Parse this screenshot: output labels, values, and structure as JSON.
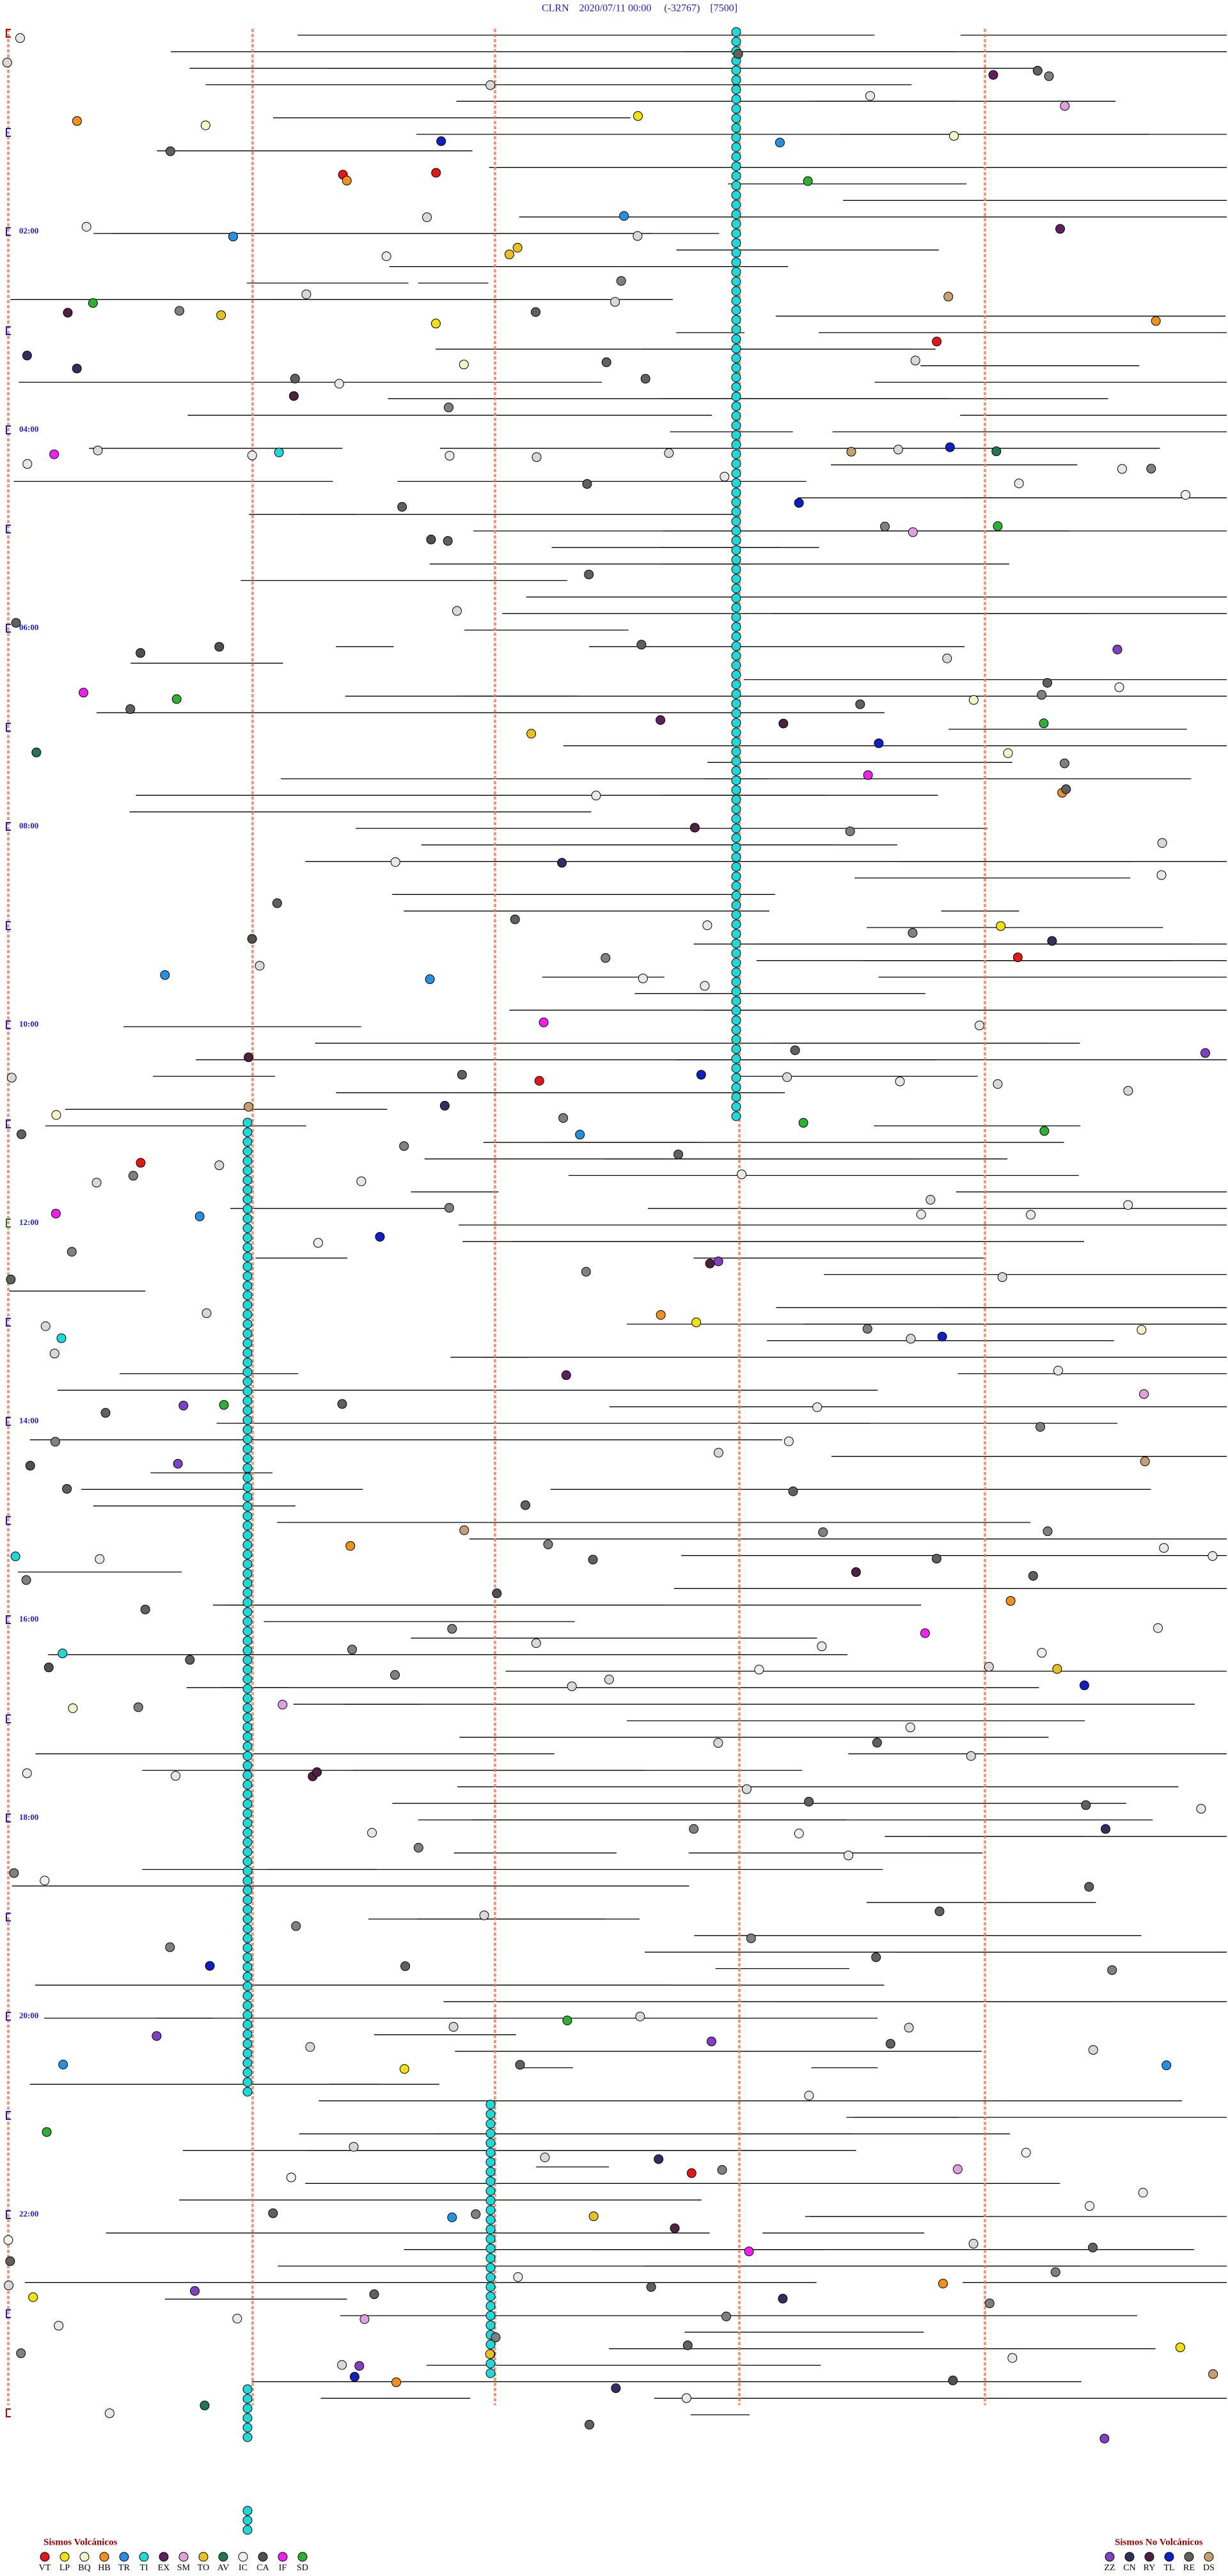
{
  "chart_data": {
    "type": "helicorder",
    "title": "CLRN    2020/07/11 00:00     (-32767)    [7500]",
    "row_labels": [
      "02:00",
      "04:00",
      "06:00",
      "08:00",
      "10:00",
      "12:00",
      "14:00",
      "16:00",
      "18:00",
      "20:00",
      "22:00"
    ],
    "legends": [
      {
        "title": "Sismos Volcánicos",
        "series": [
          {
            "name": "VT",
            "color": "#e01818"
          },
          {
            "name": "LP",
            "color": "#f2e010"
          },
          {
            "name": "BQ",
            "color": "#f4f4c8"
          },
          {
            "name": "HB",
            "color": "#f09020"
          },
          {
            "name": "TR",
            "color": "#2890e0"
          },
          {
            "name": "TI",
            "color": "#20d8d8"
          },
          {
            "name": "EX",
            "color": "#602060"
          },
          {
            "name": "SM",
            "color": "#e0a0e0"
          },
          {
            "name": "TO",
            "color": "#e8c020"
          },
          {
            "name": "AV",
            "color": "#207850"
          },
          {
            "name": "IC",
            "color": "#f0f0f0"
          },
          {
            "name": "CA",
            "color": "#505050"
          },
          {
            "name": "IF",
            "color": "#f020f0"
          },
          {
            "name": "SD",
            "color": "#30b030"
          }
        ]
      },
      {
        "title": "Sismos No Volcánicos",
        "series": [
          {
            "name": "ZZ",
            "color": "#8040c0"
          },
          {
            "name": "CN",
            "color": "#303060"
          },
          {
            "name": "RY",
            "color": "#502040"
          },
          {
            "name": "TL",
            "color": "#1020c0"
          },
          {
            "name": "RE",
            "color": "#606060"
          },
          {
            "name": "DS",
            "color": "#c8a070"
          }
        ]
      }
    ]
  }
}
